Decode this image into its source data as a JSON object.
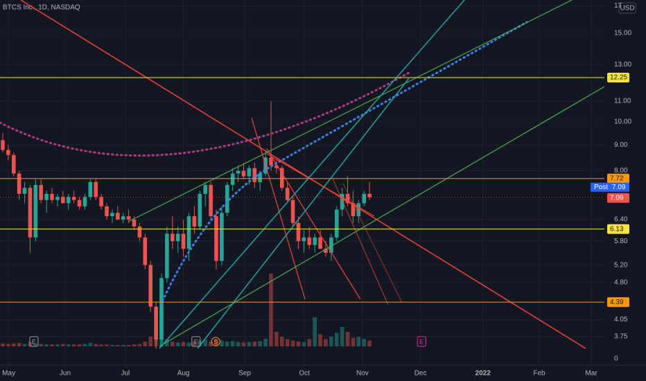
{
  "header": {
    "symbol": "BTCS Inc., 1D, NASDAQ"
  },
  "chart_data": {
    "type": "candlestick",
    "currency": "USD",
    "log_scale": true,
    "grid": true,
    "ylim": [
      3.53,
      17.46
    ],
    "yticks": [
      17,
      {
        "value": 15,
        "label": "15.00"
      },
      {
        "value": 13,
        "label": "13.00"
      },
      {
        "value": 11,
        "label": "11.00"
      },
      {
        "value": 10,
        "label": "10.00"
      },
      {
        "value": 9,
        "label": "9.00"
      },
      {
        "value": 8,
        "label": "8.00"
      },
      {
        "value": 6.4,
        "label": "6.40"
      },
      {
        "value": 5.8,
        "label": "5.80"
      },
      {
        "value": 5.2,
        "label": "5.20"
      },
      {
        "value": 4.8,
        "label": "4.80"
      },
      {
        "value": 4.05,
        "label": "4.05"
      },
      {
        "value": 3.75,
        "label": "3.75"
      }
    ],
    "xlim": [
      -0.5,
      109.9
    ],
    "xticks": [
      {
        "value": 1.1,
        "label": "May"
      },
      {
        "value": 11.4,
        "label": "Jun"
      },
      {
        "value": 22.4,
        "label": "Jul"
      },
      {
        "value": 33,
        "label": "Aug"
      },
      {
        "value": 44.2,
        "label": "Sep"
      },
      {
        "value": 55.1,
        "label": "Oct"
      },
      {
        "value": 65.7,
        "label": "Nov"
      },
      {
        "value": 76.3,
        "label": "Dec"
      },
      {
        "value": 87.7,
        "label": "2022"
      },
      {
        "value": 98,
        "label": "Feb"
      },
      {
        "value": 107.5,
        "label": "Mar"
      }
    ],
    "open": [
      9.2,
      8.8,
      8.6,
      7.9,
      7.2,
      7.4,
      5.9,
      7.5,
      7.0,
      7.2,
      7.0,
      7.1,
      6.9,
      7.1,
      7.0,
      6.8,
      7.1,
      7.6,
      7.1,
      6.8,
      6.5,
      6.6,
      6.4,
      6.5,
      6.4,
      6.2,
      5.9,
      5.2,
      4.3,
      3.7,
      4.9,
      6.0,
      5.8,
      6.0,
      5.6,
      6.5,
      6.2,
      7.2,
      7.5,
      6.5,
      5.3,
      6.6,
      7.5,
      7.9,
      8.0,
      7.8,
      8.1,
      7.6,
      7.9,
      8.5,
      8.2,
      8.1,
      7.4,
      7.0,
      6.3,
      5.8,
      5.9,
      5.7,
      5.9,
      5.6,
      5.5,
      5.9,
      6.7,
      7.2,
      6.9,
      6.5,
      6.9,
      7.2
    ],
    "high": [
      9.5,
      9.0,
      8.7,
      8.0,
      7.6,
      7.5,
      7.7,
      7.7,
      7.3,
      7.4,
      7.2,
      7.3,
      7.2,
      7.3,
      7.1,
      7.2,
      7.7,
      7.7,
      7.2,
      6.9,
      6.7,
      6.8,
      6.6,
      6.7,
      6.5,
      6.3,
      6.0,
      5.3,
      4.4,
      5.0,
      6.2,
      6.5,
      6.2,
      6.4,
      6.6,
      6.8,
      7.3,
      7.6,
      7.6,
      6.7,
      6.8,
      7.6,
      8.1,
      8.2,
      8.3,
      8.2,
      8.3,
      8.0,
      8.8,
      11.0,
      8.4,
      8.2,
      7.6,
      7.1,
      6.5,
      6.1,
      6.2,
      6.0,
      6.1,
      5.8,
      6.0,
      6.8,
      7.4,
      7.8,
      7.3,
      7.0,
      7.3,
      7.6
    ],
    "low": [
      8.7,
      8.4,
      7.8,
      7.0,
      6.9,
      5.5,
      5.8,
      6.9,
      6.6,
      6.9,
      6.8,
      6.9,
      6.7,
      6.9,
      6.7,
      6.7,
      7.0,
      7.0,
      6.7,
      6.4,
      6.3,
      6.4,
      6.3,
      6.3,
      6.1,
      5.8,
      5.1,
      4.2,
      3.55,
      3.6,
      4.8,
      5.6,
      5.5,
      5.4,
      5.3,
      6.0,
      6.1,
      6.8,
      6.4,
      5.1,
      5.2,
      6.5,
      7.3,
      7.6,
      7.7,
      7.5,
      7.4,
      7.3,
      7.8,
      8.0,
      7.9,
      7.3,
      6.9,
      6.2,
      5.6,
      5.5,
      5.6,
      5.5,
      5.6,
      5.4,
      5.3,
      5.8,
      6.5,
      6.8,
      6.3,
      6.3,
      6.8,
      7.0
    ],
    "close": [
      8.8,
      8.6,
      7.9,
      7.2,
      7.4,
      5.9,
      7.5,
      7.0,
      7.2,
      7.0,
      7.1,
      6.9,
      7.1,
      7.0,
      6.8,
      7.1,
      7.6,
      7.1,
      6.8,
      6.5,
      6.6,
      6.4,
      6.5,
      6.4,
      6.2,
      5.9,
      5.2,
      4.3,
      3.7,
      4.9,
      6.0,
      5.8,
      6.0,
      5.6,
      6.5,
      6.2,
      7.2,
      7.5,
      6.5,
      5.3,
      6.6,
      7.5,
      7.9,
      8.0,
      7.8,
      8.1,
      7.6,
      7.9,
      8.5,
      8.2,
      8.1,
      7.4,
      7.0,
      6.3,
      5.8,
      5.9,
      5.7,
      5.9,
      5.6,
      5.5,
      5.9,
      6.7,
      7.2,
      6.9,
      6.5,
      6.9,
      7.2,
      7.09
    ],
    "volume": [
      0.6,
      0.5,
      0.6,
      0.7,
      0.5,
      0.9,
      0.6,
      0.5,
      0.4,
      0.4,
      0.4,
      0.5,
      0.4,
      0.4,
      0.4,
      0.5,
      0.7,
      0.5,
      0.4,
      0.4,
      0.3,
      0.3,
      0.3,
      0.3,
      0.4,
      0.5,
      1.0,
      2.0,
      2.2,
      1.8,
      1.5,
      1.0,
      0.8,
      0.9,
      0.8,
      1.0,
      1.2,
      1.4,
      1.0,
      1.5,
      1.2,
      1.0,
      1.1,
      0.9,
      0.8,
      0.9,
      1.0,
      1.1,
      1.6,
      15,
      3.0,
      2.0,
      1.5,
      1.2,
      1.0,
      0.9,
      1.5,
      6.0,
      2.5,
      1.5,
      2.0,
      2.8,
      4.0,
      3.0,
      1.8,
      2.0,
      1.5,
      1.2
    ],
    "vlim": [
      0,
      20
    ],
    "vticks": [
      0
    ],
    "up_color": "#26a69a",
    "down_color": "#ef5350",
    "levels": [
      {
        "value": 12.25,
        "color": "#f5e342"
      },
      {
        "value": 7.72,
        "color": "#ff9800"
      },
      {
        "value": 6.13,
        "color": "#f5e342"
      },
      {
        "value": 4.39,
        "color": "#ff9800"
      }
    ],
    "last_label": "7.09",
    "post_tag": "Post",
    "post_label": "7.09",
    "events": [
      {
        "label": "E",
        "x": 5.7
      },
      {
        "label": "E",
        "x": 35.3
      },
      {
        "label": "S",
        "x": 38.9
      },
      {
        "label": "E",
        "x": 76.5
      }
    ]
  }
}
